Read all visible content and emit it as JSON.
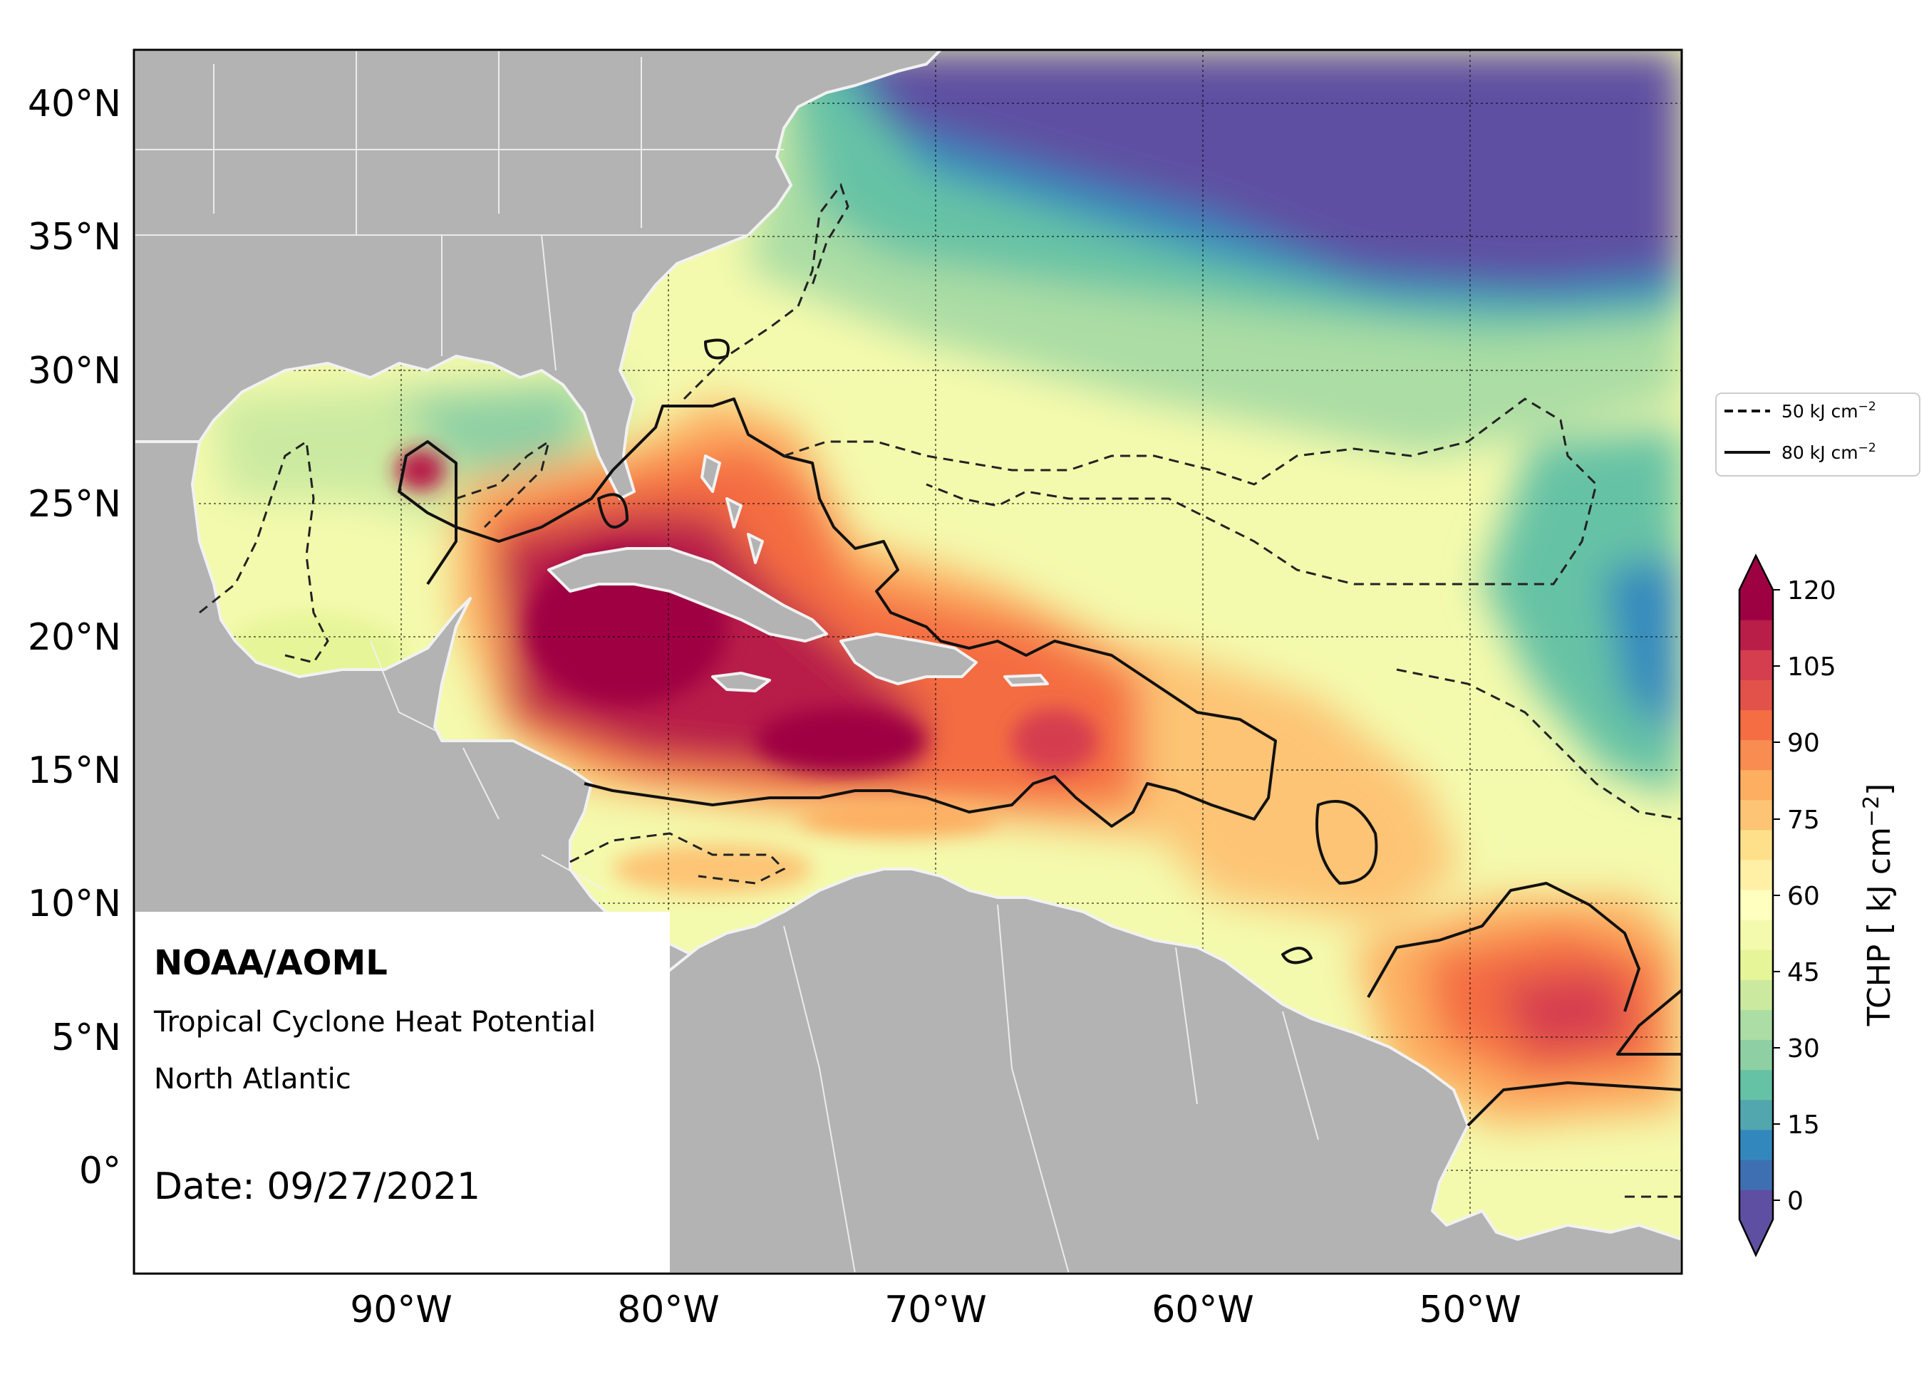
{
  "map": {
    "lat_labels": [
      "40°N",
      "35°N",
      "30°N",
      "25°N",
      "20°N",
      "15°N",
      "10°N",
      "5°N",
      "0°"
    ],
    "lon_labels": [
      "90°W",
      "80°W",
      "70°W",
      "60°W",
      "50°W"
    ],
    "info_box": {
      "org": "NOAA/AOML",
      "title_line": "Tropical Cyclone Heat Potential",
      "basin": "North Atlantic",
      "date": "Date: 09/27/2021"
    },
    "legend": {
      "dashed_label": "50 kJ cm",
      "solid_label": "80 kJ cm",
      "exponent": "−2"
    },
    "colorbar": {
      "ticks": [
        "120",
        "105",
        "90",
        "75",
        "60",
        "45",
        "30",
        "15",
        "0"
      ],
      "label_prefix": "TCHP [ kJ cm",
      "label_exponent": "−2",
      "label_suffix": "]",
      "colors": [
        "#5e4fa2",
        "#3f6fb3",
        "#3288bd",
        "#52a6ad",
        "#66c2a5",
        "#8ed0a4",
        "#abdda4",
        "#cbeaa0",
        "#e6f598",
        "#f4faad",
        "#ffffbf",
        "#fff0a6",
        "#fee08b",
        "#fdc475",
        "#fdae61",
        "#f88c51",
        "#f46d43",
        "#e2524a",
        "#d53e4f",
        "#b81e48",
        "#9e0142"
      ],
      "under_color": "#5e4fa2",
      "over_color": "#9e0142"
    },
    "colors": {
      "land": "#b3b3b3",
      "land_border": "#f2f2f2",
      "cool_ocean": "#5e4fa2"
    }
  }
}
